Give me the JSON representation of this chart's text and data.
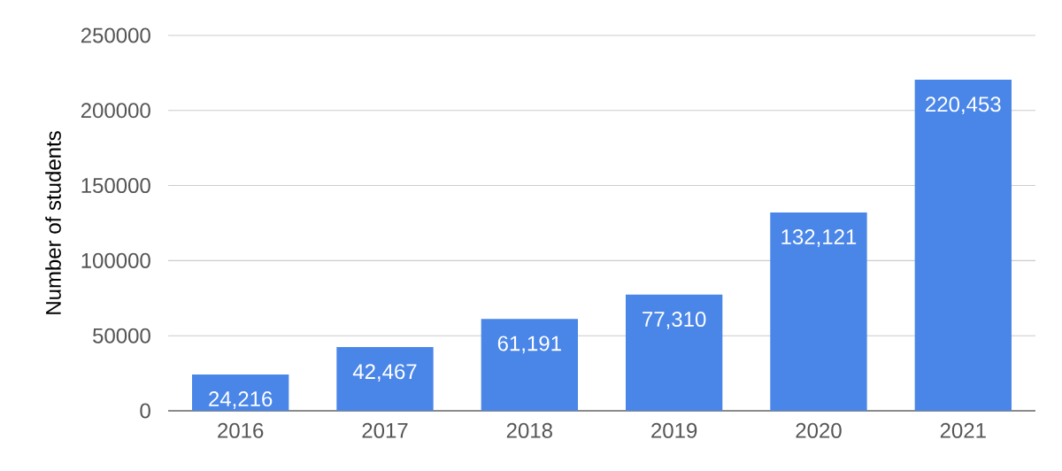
{
  "chart_data": {
    "type": "bar",
    "ylabel": "Number of students",
    "categories": [
      "2016",
      "2017",
      "2018",
      "2019",
      "2020",
      "2021"
    ],
    "values": [
      24216,
      42467,
      61191,
      77310,
      132121,
      220453
    ],
    "value_labels": [
      "24,216",
      "42,467",
      "61,191",
      "77,310",
      "132,121",
      "220,453"
    ],
    "color": "#4a86e8",
    "ylim": [
      0,
      250000
    ],
    "yticks": [
      0,
      50000,
      100000,
      150000,
      200000,
      250000
    ],
    "grid": "y"
  }
}
